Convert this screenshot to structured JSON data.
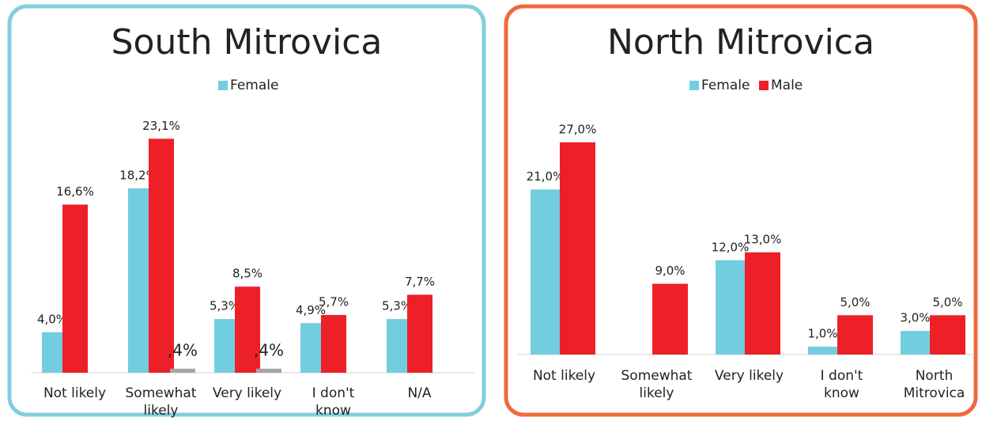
{
  "chart_data": [
    {
      "type": "bar",
      "title": "South Mitrovica",
      "categories": [
        "Not likely",
        "Somewhat likely",
        "Very likely",
        "I don't know",
        "N/A"
      ],
      "series": [
        {
          "name": "Female",
          "color": "#72cde0",
          "values": [
            4.0,
            18.2,
            5.3,
            4.9,
            5.3
          ],
          "value_labels": [
            "4,0%",
            "18,2%",
            "5,3%",
            "4,9%",
            "5,3%"
          ]
        },
        {
          "color": "#ed2028",
          "values": [
            16.6,
            23.1,
            8.5,
            5.7,
            7.7
          ],
          "value_labels": [
            "16,6%",
            "23,1%",
            "8,5%",
            "5,7%",
            "7,7%"
          ]
        },
        {
          "color": "#a6a6a6",
          "values": [
            null,
            0.4,
            0.4,
            null,
            null
          ],
          "value_labels": [
            null,
            ",4%",
            ",4%",
            null,
            null
          ]
        }
      ],
      "ylim": [
        0,
        25
      ],
      "border_color": "#84cde0"
    },
    {
      "type": "bar",
      "title": "North Mitrovica",
      "categories": [
        "Not likely",
        "Somewhat likely",
        "Very likely",
        "I don't know",
        "North Mitrovica"
      ],
      "series": [
        {
          "name": "Female",
          "color": "#72cde0",
          "values": [
            21.0,
            null,
            12.0,
            1.0,
            3.0
          ],
          "value_labels": [
            "21,0%",
            null,
            "12,0%",
            "1,0%",
            "3,0%"
          ]
        },
        {
          "name": "Male",
          "color": "#ed2028",
          "values": [
            27.0,
            9.0,
            13.0,
            5.0,
            5.0
          ],
          "value_labels": [
            "27,0%",
            "9,0%",
            "13,0%",
            "5,0%",
            "5,0%"
          ]
        }
      ],
      "ylim": [
        0,
        30
      ],
      "border_color": "#ef6a3e"
    }
  ]
}
